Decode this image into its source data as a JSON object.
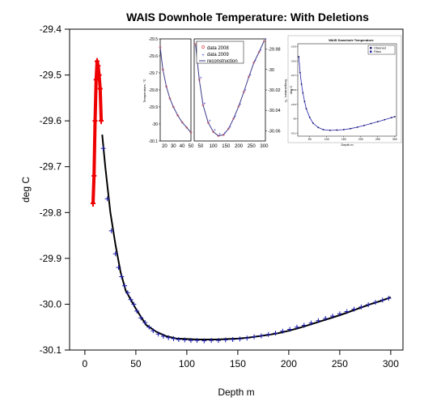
{
  "chart_data": {
    "type": "line",
    "title": "WAIS Downhole Temperature: With Deletions",
    "xlabel": "Depth m",
    "ylabel": "deg C",
    "xlim": [
      -15,
      312
    ],
    "ylim": [
      -30.1,
      -29.4
    ],
    "x_ticks": [
      "0",
      "50",
      "100",
      "150",
      "200",
      "250",
      "300"
    ],
    "y_ticks": [
      "-29.4",
      "-29.5",
      "-29.6",
      "-29.7",
      "-29.8",
      "-29.9",
      "-30.0",
      "-30.1"
    ],
    "x_tick_values": [
      0,
      50,
      100,
      150,
      200,
      250,
      300
    ],
    "y_tick_values": [
      -29.4,
      -29.5,
      -29.6,
      -29.7,
      -29.8,
      -29.9,
      -30.0,
      -30.1
    ],
    "grid": false,
    "series": [
      {
        "color": "#ee0000",
        "style": "thick line with markers (deleted shallow data)",
        "x": [
          8,
          9,
          10,
          11,
          12,
          13,
          14,
          15,
          16
        ],
        "y": [
          -29.78,
          -29.72,
          -29.6,
          -29.51,
          -29.47,
          -29.48,
          -29.5,
          -29.53,
          -29.6
        ]
      },
      {
        "color": "#000000",
        "style": "fitted line",
        "x": [
          17,
          20,
          25,
          30,
          35,
          40,
          50,
          60,
          70,
          80,
          90,
          100,
          110,
          120,
          130,
          140,
          150,
          160,
          170,
          180,
          190,
          200,
          210,
          220,
          230,
          240,
          250,
          260,
          270,
          280,
          290,
          300
        ],
        "y": [
          -29.63,
          -29.7,
          -29.8,
          -29.87,
          -29.93,
          -29.97,
          -30.01,
          -30.045,
          -30.06,
          -30.07,
          -30.075,
          -30.076,
          -30.077,
          -30.077,
          -30.077,
          -30.076,
          -30.075,
          -30.073,
          -30.07,
          -30.067,
          -30.063,
          -30.058,
          -30.052,
          -30.045,
          -30.038,
          -30.031,
          -30.024,
          -30.016,
          -30.008,
          -30.0,
          -29.993,
          -29.985
        ]
      },
      {
        "color": "#1a1aaa",
        "style": "observed markers (+)",
        "x": [
          18,
          22,
          26,
          30,
          33,
          36,
          39,
          42,
          45,
          48,
          51,
          55,
          59,
          63,
          67,
          72,
          77,
          82,
          87,
          92,
          98,
          104,
          110,
          117,
          124,
          131,
          138,
          145,
          152,
          159,
          166,
          173,
          180,
          187,
          194,
          201,
          208,
          215,
          222,
          229,
          236,
          243,
          250,
          257,
          264,
          271,
          278,
          285,
          292,
          298
        ],
        "y": [
          -29.66,
          -29.77,
          -29.84,
          -29.89,
          -29.92,
          -29.94,
          -29.96,
          -29.975,
          -29.99,
          -30.0,
          -30.015,
          -30.03,
          -30.04,
          -30.05,
          -30.058,
          -30.065,
          -30.07,
          -30.073,
          -30.075,
          -30.077,
          -30.078,
          -30.079,
          -30.079,
          -30.08,
          -30.079,
          -30.079,
          -30.078,
          -30.077,
          -30.076,
          -30.074,
          -30.071,
          -30.069,
          -30.066,
          -30.063,
          -30.059,
          -30.055,
          -30.05,
          -30.046,
          -30.041,
          -30.036,
          -30.031,
          -30.026,
          -30.021,
          -30.016,
          -30.011,
          -30.006,
          -30.001,
          -29.996,
          -29.991,
          -29.987
        ]
      }
    ]
  },
  "inset_left": {
    "y_ticks": [
      "-29.5",
      "-29.6",
      "-29.7",
      "-29.8",
      "-29.9",
      "-30",
      "-30.1"
    ],
    "x_ticks_a": [
      "20",
      "30",
      "40",
      "50"
    ],
    "x_ticks_b": [
      "50",
      "100",
      "150",
      "200",
      "250",
      "300"
    ],
    "y2_ticks": [
      "-29.98",
      "-30",
      "-30.02",
      "-30.04",
      "-30.06"
    ],
    "ylabel": "Temperature, °C",
    "y2label": "Temperature, °C",
    "legend": [
      "data 2008",
      "data 2009",
      "reconstruction"
    ],
    "colors": {
      "data2008": "#e05050",
      "data2009": "#4a4ad0",
      "reconstruction": "#3a3a8a"
    }
  },
  "inset_right": {
    "title": "WAIS Downhole Temperature",
    "legend": [
      "Observed",
      "Fitted"
    ],
    "xlabel": "Depth m",
    "ylabel": "deg C",
    "x_ticks": [
      "50",
      "100",
      "150",
      "200",
      "250",
      "300"
    ],
    "y_ticks": [
      "-29.5",
      "-29.6",
      "-29.7",
      "-29.8",
      "-29.9",
      "-30",
      "-30.1"
    ]
  }
}
